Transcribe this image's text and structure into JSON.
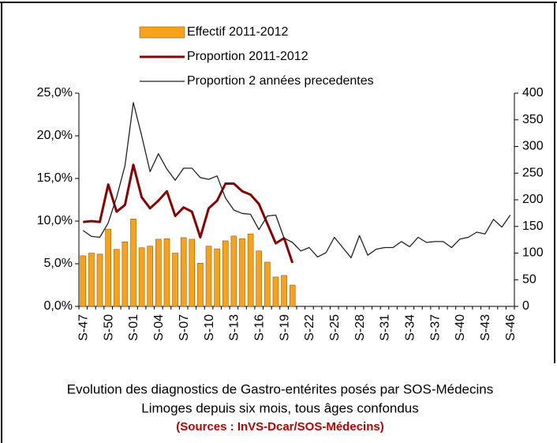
{
  "chart_data": {
    "type": "bar_line",
    "title": "Evolution des diagnostics de Gastro-entérites posés par SOS-Médecins",
    "subtitle": "Limoges depuis six mois, tous âges confondus",
    "source": "(Sources : InVS-Dcar/SOS-Médecins)",
    "categories": [
      "S-47",
      null,
      null,
      "S-50",
      null,
      null,
      "S-01",
      null,
      null,
      "S-04",
      null,
      null,
      "S-07",
      null,
      null,
      "S-10",
      null,
      null,
      "S-13",
      null,
      null,
      "S-16",
      null,
      null,
      "S-19",
      null,
      null,
      "S-22",
      null,
      null,
      "S-25",
      null,
      null,
      "S-28",
      null,
      null,
      "S-31",
      null,
      null,
      "S-34",
      null,
      null,
      "S-37",
      null,
      null,
      "S-40",
      null,
      null,
      "S-43",
      null,
      null,
      "S-46"
    ],
    "series": [
      {
        "name": "Effectif 2011-2012",
        "kind": "bar",
        "axis": "y2",
        "color": "#f7a21b",
        "values": [
          95,
          100,
          98,
          145,
          107,
          121,
          164,
          110,
          113,
          126,
          127,
          100,
          129,
          126,
          81,
          113,
          108,
          123,
          132,
          127,
          136,
          104,
          83,
          55,
          58,
          40,
          null,
          null,
          null,
          null,
          null,
          null,
          null,
          null,
          null,
          null,
          null,
          null,
          null,
          null,
          null,
          null,
          null,
          null,
          null,
          null,
          null,
          null,
          null,
          null,
          null,
          null
        ]
      },
      {
        "name": "Proportion 2011-2012",
        "kind": "line",
        "color": "#8b0000",
        "values": [
          9.9,
          10.0,
          9.9,
          14.3,
          11.1,
          11.9,
          16.6,
          12.8,
          11.5,
          12.4,
          13.5,
          10.6,
          11.6,
          11.1,
          8.1,
          11.5,
          12.4,
          14.4,
          14.4,
          13.5,
          13.1,
          12.0,
          9.7,
          7.4,
          8.0,
          5.1,
          null,
          null,
          null,
          null,
          null,
          null,
          null,
          null,
          null,
          null,
          null,
          null,
          null,
          null,
          null,
          null,
          null,
          null,
          null,
          null,
          null,
          null,
          null,
          null,
          null,
          null
        ]
      },
      {
        "name": "Proportion 2 années precedentes",
        "kind": "line",
        "color": "#222222",
        "values": [
          8.9,
          8.2,
          8.1,
          9.8,
          12.8,
          16.5,
          23.9,
          20.0,
          15.8,
          17.9,
          16.1,
          14.8,
          16.2,
          16.2,
          15.1,
          14.9,
          15.3,
          12.7,
          11.3,
          10.9,
          10.8,
          9.0,
          10.6,
          10.7,
          8.0,
          7.5,
          6.5,
          6.9,
          5.8,
          6.3,
          8.1,
          6.9,
          5.7,
          8.3,
          6.0,
          6.7,
          6.9,
          6.9,
          7.6,
          7.0,
          8.1,
          7.5,
          7.6,
          7.6,
          6.9,
          7.9,
          8.1,
          8.7,
          8.5,
          10.2,
          9.3,
          10.7
        ]
      }
    ],
    "ylim": [
      0,
      25
    ],
    "yticks": [
      {
        "value": 0,
        "label": "0,0%"
      },
      {
        "value": 5,
        "label": "5,0%"
      },
      {
        "value": 10,
        "label": "10,0%"
      },
      {
        "value": 15,
        "label": "15,0%"
      },
      {
        "value": 20,
        "label": "20,0%"
      },
      {
        "value": 25,
        "label": "25,0%"
      }
    ],
    "y2lim": [
      0,
      400
    ],
    "y2ticks": [
      0,
      50,
      100,
      150,
      200,
      250,
      300,
      350,
      400
    ]
  }
}
